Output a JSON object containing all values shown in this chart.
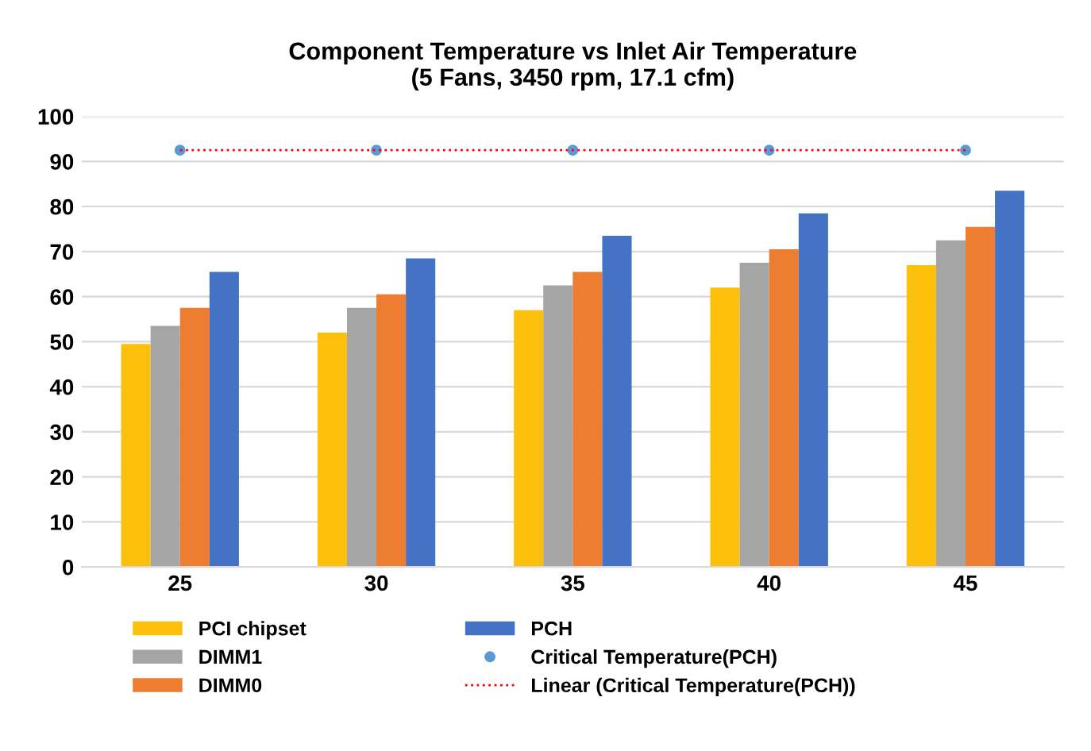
{
  "chart_data": {
    "type": "bar",
    "title": "Component Temperature vs Inlet Air Temperature\n(5 Fans, 3450 rpm, 17.1 cfm)",
    "categories": [
      "25",
      "30",
      "35",
      "40",
      "45"
    ],
    "series": [
      {
        "name": "PCI chipset",
        "color": "#fcc00c",
        "values": [
          49.5,
          52,
          57,
          62,
          67
        ]
      },
      {
        "name": "DIMM1",
        "color": "#a5a5a5",
        "values": [
          53.5,
          57.5,
          62.5,
          67.5,
          72.5
        ]
      },
      {
        "name": "DIMM0",
        "color": "#ed7d31",
        "values": [
          57.5,
          60.5,
          65.5,
          70.5,
          75.5
        ]
      },
      {
        "name": "PCH",
        "color": "#4472c4",
        "values": [
          65.5,
          68.5,
          73.5,
          78.5,
          83.5
        ]
      },
      {
        "name": "Critical Temperature(PCH)",
        "type": "scatter",
        "marker": "circle",
        "color": "#5b9bd5",
        "x": [
          "25",
          "30",
          "35",
          "40",
          "45"
        ],
        "values": [
          92.5,
          92.5,
          92.5,
          92.5,
          92.5
        ]
      },
      {
        "name": "Linear (Critical Temperature(PCH))",
        "type": "line",
        "line_style": "dotted",
        "color": "#ff0000",
        "x": [
          "25",
          "30",
          "35",
          "40",
          "45"
        ],
        "values": [
          92.5,
          92.5,
          92.5,
          92.5,
          92.5
        ]
      }
    ],
    "ylim": [
      0,
      100
    ],
    "yticks": [
      0,
      10,
      20,
      30,
      40,
      50,
      60,
      70,
      80,
      90,
      100
    ],
    "grid": "y",
    "legend": "bottom"
  }
}
